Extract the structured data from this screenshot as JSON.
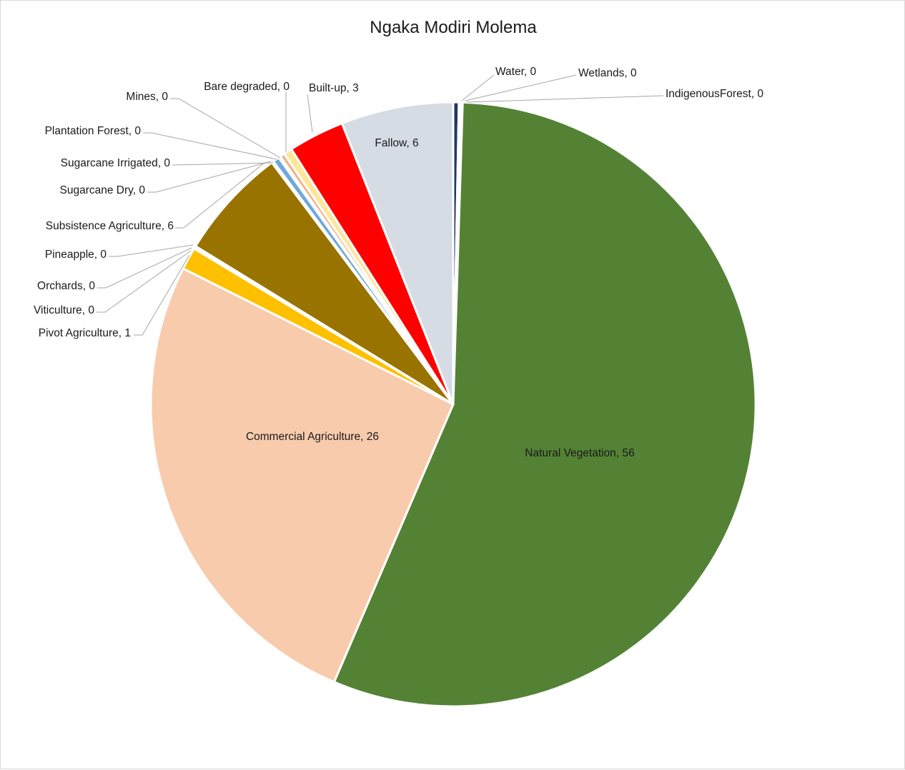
{
  "chart_data": {
    "type": "pie",
    "title": "Ngaka Modiri Molema",
    "slices": [
      {
        "name": "Water",
        "value": 0.3,
        "label": "Water, 0",
        "color": "#1f3864"
      },
      {
        "name": "Wetlands",
        "value": 0.1,
        "label": "Wetlands, 0",
        "color": "#c9c9c9"
      },
      {
        "name": "IndigenousForest",
        "value": 0.1,
        "label": "IndigenousForest, 0",
        "color": "#a9d18e"
      },
      {
        "name": "Natural Vegetation",
        "value": 56,
        "label": "Natural Vegetation, 56",
        "color": "#548235"
      },
      {
        "name": "Commercial Agriculture",
        "value": 26,
        "label": "Commercial Agriculture, 26",
        "color": "#f8cbad"
      },
      {
        "name": "Pivot  Agriculture",
        "value": 1.2,
        "label": "Pivot  Agriculture, 1",
        "color": "#ffc000"
      },
      {
        "name": "Viticulture",
        "value": 0.05,
        "label": "Viticulture, 0",
        "color": "#7030a0"
      },
      {
        "name": "Orchards",
        "value": 0.05,
        "label": "Orchards, 0",
        "color": "#c00000"
      },
      {
        "name": "Pineapple",
        "value": 0.05,
        "label": "Pineapple, 0",
        "color": "#00b0f0"
      },
      {
        "name": "Subsistence Agriculture",
        "value": 6,
        "label": "Subsistence Agriculture, 6",
        "color": "#997300"
      },
      {
        "name": "Sugarcane Dry",
        "value": 0.1,
        "label": "Sugarcane Dry, 0",
        "color": "#d9d9d9"
      },
      {
        "name": "Sugarcane Irrigated",
        "value": 0.35,
        "label": "Sugarcane Irrigated, 0",
        "color": "#6fa8dc"
      },
      {
        "name": "Plantation Forest",
        "value": 0.1,
        "label": "Plantation Forest, 0",
        "color": "#70ad47"
      },
      {
        "name": "Mines",
        "value": 0.25,
        "label": "Mines, 0",
        "color": "#f4b183"
      },
      {
        "name": "Bare degraded",
        "value": 0.45,
        "label": "Bare degraded, 0",
        "color": "#ffe699"
      },
      {
        "name": "Built-up",
        "value": 3,
        "label": "Built-up, 3",
        "color": "#ff0000"
      },
      {
        "name": "Fallow",
        "value": 6,
        "label": "Fallow, 6",
        "color": "#d6dce4"
      }
    ]
  }
}
